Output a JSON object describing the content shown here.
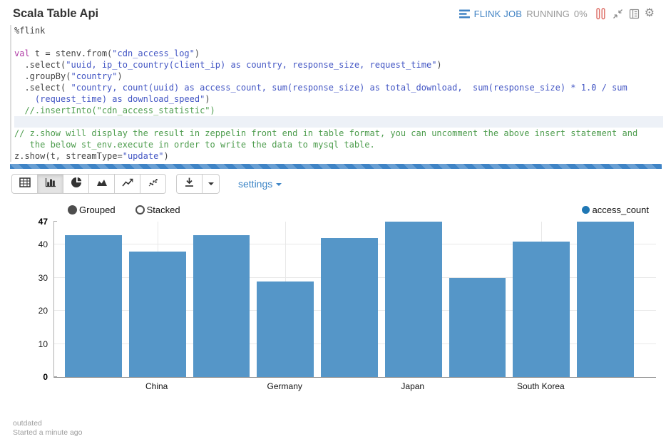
{
  "header": {
    "title": "Scala Table Api",
    "status": {
      "flink_job_label": "FLINK JOB",
      "state": "RUNNING",
      "progress": "0%",
      "icons": [
        "flink-tasks-icon",
        "pause-icon",
        "compress-icon",
        "output-book-icon",
        "gear-icon"
      ]
    }
  },
  "editor": {
    "lines": [
      {
        "seg": [
          [
            "p",
            "%flink"
          ]
        ]
      },
      {
        "seg": []
      },
      {
        "seg": [
          [
            "k",
            "val"
          ],
          [
            "p",
            " t = stenv.from("
          ],
          [
            "s",
            "\"cdn_access_log\""
          ],
          [
            "p",
            ")"
          ]
        ]
      },
      {
        "seg": [
          [
            "p",
            "  .select("
          ],
          [
            "s",
            "\"uuid, ip_to_country(client_ip) as country, response_size, request_time\""
          ],
          [
            "p",
            ")"
          ]
        ]
      },
      {
        "seg": [
          [
            "p",
            "  .groupBy("
          ],
          [
            "s",
            "\"country\""
          ],
          [
            "p",
            ")"
          ]
        ]
      },
      {
        "seg": [
          [
            "p",
            "  .select( "
          ],
          [
            "s",
            "\"country, count(uuid) as access_count, sum(response_size) as total_download,  sum(response_size) * 1.0 / sum"
          ]
        ]
      },
      {
        "seg": [
          [
            "s",
            "    (request_time) as download_speed\""
          ],
          [
            "p",
            ")"
          ]
        ]
      },
      {
        "seg": [
          [
            "c",
            "  //.insertInto(\"cdn_access_statistic\")"
          ]
        ]
      },
      {
        "hl": true,
        "seg": []
      },
      {
        "seg": [
          [
            "c",
            "// z.show will display the result in zeppelin front end in table format, you can uncomment the above insert statement and"
          ]
        ]
      },
      {
        "seg": [
          [
            "c",
            "   the below st_env.execute in order to write the data to mysql table."
          ]
        ]
      },
      {
        "seg": [
          [
            "p",
            "z.show(t, streamType="
          ],
          [
            "s",
            "\"update\""
          ],
          [
            "p",
            ")"
          ]
        ]
      }
    ]
  },
  "toolbar": {
    "chart_type_icons": [
      "table",
      "bar-chart",
      "pie-chart",
      "area-chart",
      "line-chart",
      "scatter-chart"
    ],
    "active_chart_type": "bar-chart",
    "download_icon": "download",
    "settings_label": "settings"
  },
  "chart_data": {
    "type": "bar",
    "series": [
      {
        "name": "access_count",
        "values": [
          43,
          38,
          43,
          29,
          42,
          47,
          30,
          41,
          47
        ],
        "color": "#1f77b4",
        "bar_fill": "#5596c8"
      }
    ],
    "categories_visible": [
      "China",
      "Germany",
      "Japan",
      "South Korea"
    ],
    "x_tick_positions": [
      1,
      3,
      5,
      7
    ],
    "y_ticks": [
      0,
      10,
      20,
      30,
      40,
      47
    ],
    "ylim": [
      0,
      47
    ],
    "grid": true,
    "grouping": {
      "options": [
        "Grouped",
        "Stacked"
      ],
      "selected": "Grouped"
    },
    "legend": [
      {
        "label": "access_count",
        "color": "#1f77b4"
      }
    ],
    "legend_position": "top-right"
  },
  "footer": {
    "status": "outdated",
    "started": "Started a minute ago"
  }
}
